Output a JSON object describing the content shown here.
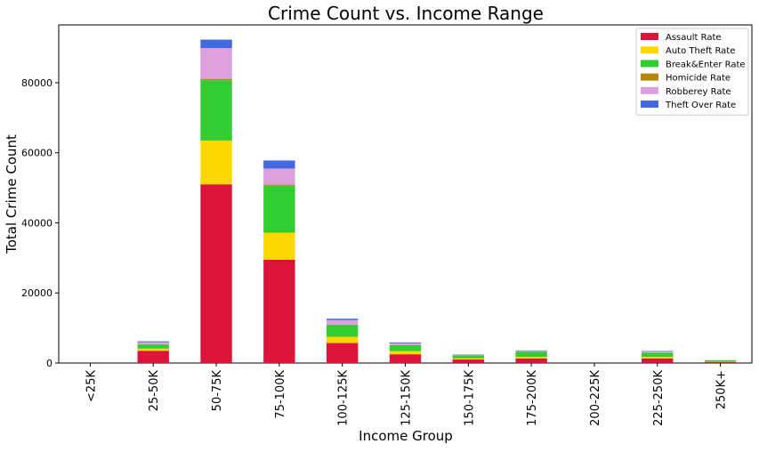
{
  "chart_data": {
    "type": "bar",
    "stacked": true,
    "title": "Crime Count vs. Income Range",
    "xlabel": "Income Group",
    "ylabel": "Total Crime Count",
    "ylim": [
      0,
      96500
    ],
    "yticks": [
      0,
      20000,
      40000,
      60000,
      80000
    ],
    "grid": false,
    "legend_position": "top-right",
    "categories": [
      "<25K",
      "25-50K",
      "50-75K",
      "75-100K",
      "100-125K",
      "125-150K",
      "150-175K",
      "175-200K",
      "200-225K",
      "225-250K",
      "250K+"
    ],
    "series": [
      {
        "name": "Assault Rate",
        "color": "#dc143c",
        "values": [
          0,
          3500,
          51000,
          29500,
          5700,
          2500,
          1000,
          1300,
          0,
          1300,
          250
        ]
      },
      {
        "name": "Auto Theft Rate",
        "color": "#ffd700",
        "values": [
          0,
          600,
          12500,
          7700,
          1800,
          900,
          350,
          450,
          0,
          450,
          100
        ]
      },
      {
        "name": "Break&Enter Rate",
        "color": "#32cd32",
        "values": [
          0,
          1200,
          17200,
          13400,
          3400,
          1700,
          850,
          1500,
          0,
          1200,
          400
        ]
      },
      {
        "name": "Homicide Rate",
        "color": "#b8860b",
        "values": [
          0,
          50,
          400,
          300,
          50,
          30,
          10,
          10,
          0,
          30,
          10
        ]
      },
      {
        "name": "Robberey Rate",
        "color": "#dda0dd",
        "values": [
          0,
          600,
          8800,
          4600,
          1300,
          500,
          150,
          200,
          0,
          300,
          60
        ]
      },
      {
        "name": "Theft Over Rate",
        "color": "#4169e1",
        "values": [
          0,
          250,
          2400,
          2300,
          400,
          250,
          100,
          130,
          0,
          150,
          30
        ]
      }
    ]
  }
}
